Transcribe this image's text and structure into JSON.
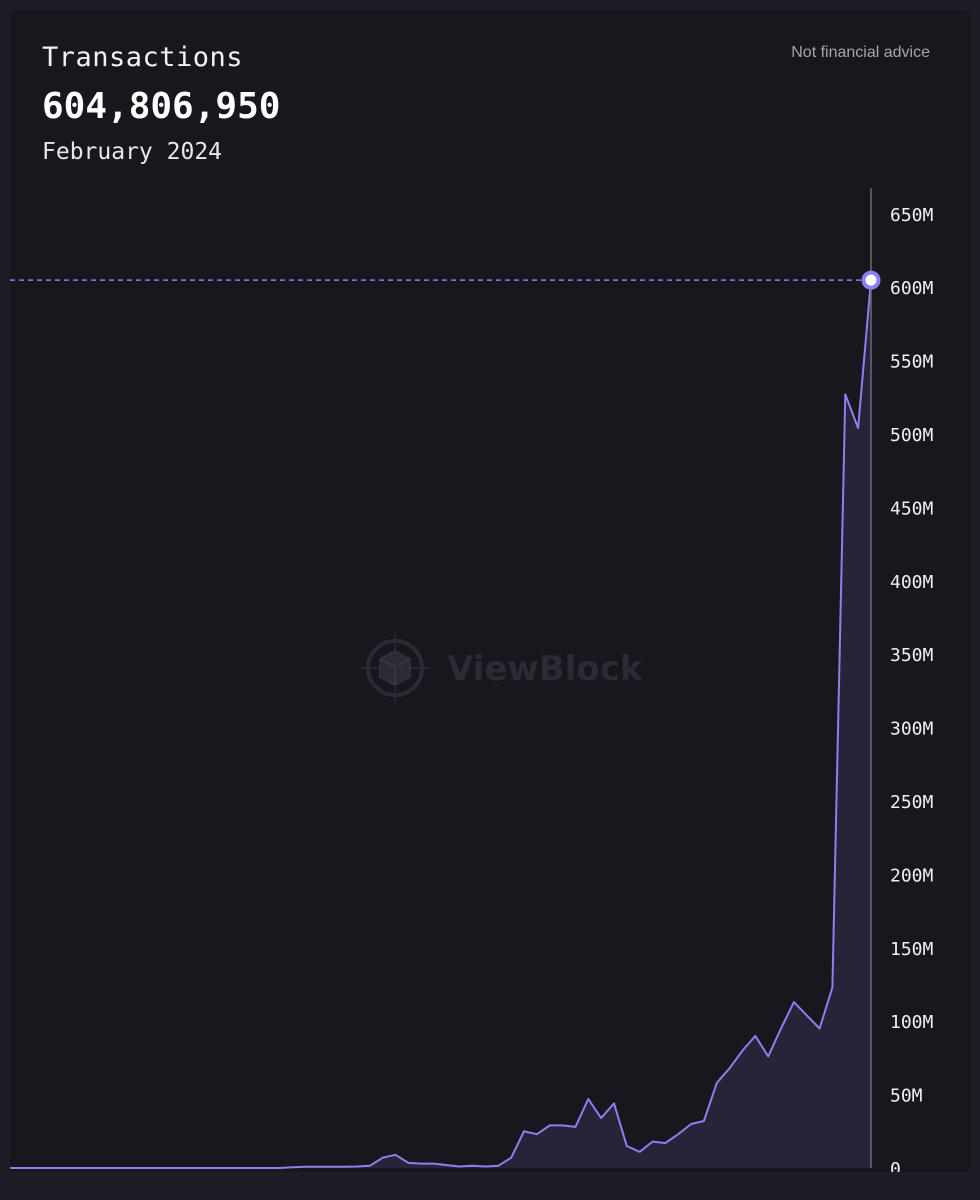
{
  "header": {
    "title": "Transactions",
    "value": "604,806,950",
    "date": "February 2024",
    "disclaimer": "Not financial advice"
  },
  "watermark": {
    "text": "ViewBlock",
    "icon": "cube-icon"
  },
  "colors": {
    "line": "#8b80f0",
    "fill": "#27243a",
    "marker": "#8b80f0",
    "guide": "#8b80f0",
    "axis": "#6a6a73"
  },
  "chart_data": {
    "type": "area",
    "title": "Transactions",
    "xlabel": "",
    "ylabel": "",
    "ylim": [
      0,
      670000000
    ],
    "grid": false,
    "y_axis_side": "right",
    "y_ticks": [
      0,
      50000000,
      100000000,
      150000000,
      200000000,
      250000000,
      300000000,
      350000000,
      400000000,
      450000000,
      500000000,
      550000000,
      600000000,
      650000000
    ],
    "y_tick_labels": [
      "0",
      "50M",
      "100M",
      "150M",
      "200M",
      "250M",
      "300M",
      "350M",
      "400M",
      "450M",
      "500M",
      "550M",
      "600M",
      "650M"
    ],
    "highlight": {
      "label": "February 2024",
      "value": 604806950
    },
    "series": [
      {
        "values": [
          0,
          0,
          0,
          0,
          0,
          0,
          0,
          0,
          0,
          0,
          0,
          0,
          0,
          0,
          0,
          0,
          0,
          0,
          0,
          0,
          0,
          0,
          500000,
          800000,
          800000,
          800000,
          800000,
          1000000,
          1500000,
          7000000,
          9000000,
          3500000,
          3000000,
          3000000,
          2000000,
          1000000,
          1500000,
          1000000,
          1500000,
          7000000,
          25000000,
          23000000,
          29000000,
          29000000,
          28000000,
          47000000,
          34000000,
          44000000,
          15000000,
          11000000,
          18000000,
          17000000,
          23000000,
          30000000,
          32000000,
          58000000,
          68000000,
          80000000,
          90000000,
          76000000,
          95000000,
          113000000,
          104000000,
          95000000,
          123000000,
          527000000,
          504000000,
          604806950
        ]
      }
    ]
  }
}
